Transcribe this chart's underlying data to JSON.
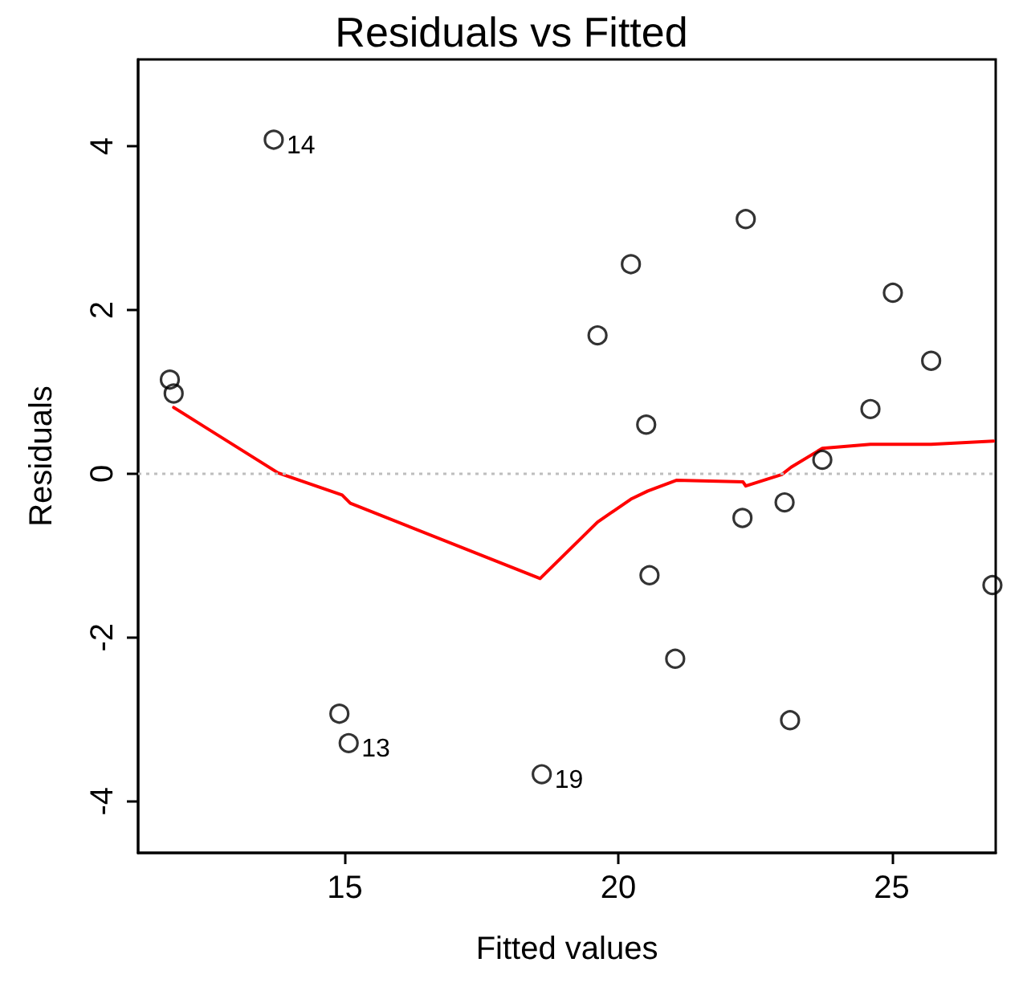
{
  "chart_data": {
    "type": "scatter",
    "title": "Residuals vs Fitted",
    "xlabel": "Fitted values",
    "ylabel": "Residuals",
    "xlim": [
      11.22,
      26.9
    ],
    "xticks": [
      15,
      20,
      25
    ],
    "ylim": [
      -4.63,
      5.06
    ],
    "yticks": [
      -4,
      -2,
      0,
      2,
      4
    ],
    "grid": false,
    "marker": "circle",
    "series": [
      {
        "color": "#000000",
        "x": [
          11.8,
          11.87,
          13.7,
          14.9,
          15.07,
          18.6,
          19.62,
          20.23,
          20.51,
          20.57,
          21.04,
          22.27,
          22.33,
          23.04,
          23.14,
          23.73,
          24.61,
          25.02,
          25.72,
          26.84
        ],
        "values": [
          1.15,
          0.98,
          4.08,
          -2.93,
          -3.29,
          -3.67,
          1.69,
          2.56,
          0.6,
          -1.24,
          -2.26,
          -0.54,
          3.11,
          -0.35,
          -3.01,
          0.17,
          0.79,
          2.21,
          1.38,
          -1.36
        ]
      },
      {
        "type": "line",
        "color": "#ff0000",
        "marker": "none",
        "line_style": "solid",
        "x": [
          11.87,
          13.78,
          14.95,
          15.1,
          18.57,
          19.62,
          20.23,
          20.54,
          21.06,
          22.28,
          22.33,
          22.99,
          23.16,
          23.73,
          24.61,
          25.72,
          26.86
        ],
        "values": [
          0.81,
          0.01,
          -0.26,
          -0.36,
          -1.28,
          -0.59,
          -0.31,
          -0.21,
          -0.08,
          -0.1,
          -0.15,
          -0.01,
          0.08,
          0.31,
          0.36,
          0.36,
          0.4
        ]
      }
    ],
    "ref_lines": [
      {
        "axis": "y",
        "value": 0,
        "color": "#bebebe",
        "line_style": "dotted"
      }
    ],
    "annotations": [
      {
        "text": "14",
        "x": 13.7,
        "y": 4.08
      },
      {
        "text": "13",
        "x": 15.07,
        "y": -3.29
      },
      {
        "text": "19",
        "x": 18.6,
        "y": -3.67
      }
    ]
  }
}
